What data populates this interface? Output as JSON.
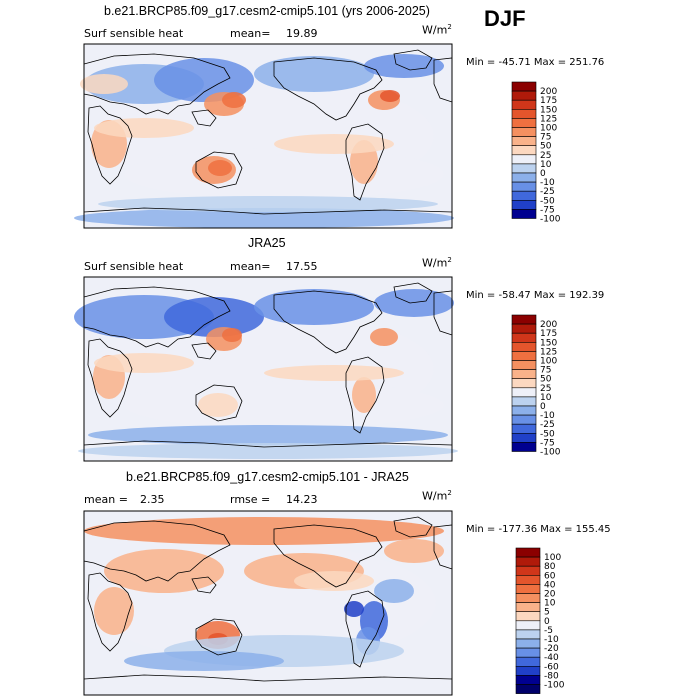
{
  "season": "DJF",
  "chart_data": [
    {
      "type": "heatmap",
      "title": "b.e21.BRCP85.f09_g17.cesm2-cmip5.101 (yrs 2006-2025)",
      "left_label": "Surf sensible heat",
      "mean_label": "mean=",
      "mean_value": "19.89",
      "units": "W/m",
      "units_exp": "2",
      "min_max": "Min = -45.71 Max = 251.76",
      "min": -45.71,
      "max": 251.76,
      "colorbar_levels": [
        "200",
        "175",
        "150",
        "125",
        "100",
        "75",
        "50",
        "25",
        "10",
        "0",
        "-10",
        "-25",
        "-50",
        "-75",
        "-100"
      ],
      "colorbar_colors": [
        "#8b0000",
        "#b01a0a",
        "#d0361a",
        "#e4552c",
        "#ef7040",
        "#f59060",
        "#f9b28a",
        "#fcd8c0",
        "#eef0f8",
        "#bcd2ef",
        "#8cb0ea",
        "#6890e6",
        "#4068dc",
        "#2040c8",
        "#000090"
      ]
    },
    {
      "type": "heatmap",
      "title": "JRA25",
      "left_label": "Surf sensible heat",
      "mean_label": "mean=",
      "mean_value": "17.55",
      "units": "W/m",
      "units_exp": "2",
      "min_max": "Min = -58.47 Max = 192.39",
      "min": -58.47,
      "max": 192.39,
      "colorbar_levels": [
        "200",
        "175",
        "150",
        "125",
        "100",
        "75",
        "50",
        "25",
        "10",
        "0",
        "-10",
        "-25",
        "-50",
        "-75",
        "-100"
      ],
      "colorbar_colors": [
        "#8b0000",
        "#b01a0a",
        "#d0361a",
        "#e4552c",
        "#ef7040",
        "#f59060",
        "#f9b28a",
        "#fcd8c0",
        "#eef0f8",
        "#bcd2ef",
        "#8cb0ea",
        "#6890e6",
        "#4068dc",
        "#2040c8",
        "#000090"
      ]
    },
    {
      "type": "heatmap",
      "title": "b.e21.BRCP85.f09_g17.cesm2-cmip5.101 - JRA25",
      "left_label": "mean =",
      "mean_label": "",
      "mean_value": "2.35",
      "rmse_label": "rmse =",
      "rmse_value": "14.23",
      "units": "W/m",
      "units_exp": "2",
      "min_max": "Min = -177.36 Max = 155.45",
      "min": -177.36,
      "max": 155.45,
      "colorbar_levels": [
        "100",
        "80",
        "60",
        "40",
        "20",
        "10",
        "5",
        "0",
        "-5",
        "-10",
        "-20",
        "-40",
        "-60",
        "-80",
        "-100"
      ],
      "colorbar_colors": [
        "#8b0000",
        "#b01a0a",
        "#d0361a",
        "#e4552c",
        "#ef7040",
        "#f59060",
        "#f9b28a",
        "#fcd8c0",
        "#eef0f8",
        "#bcd2ef",
        "#8cb0ea",
        "#6890e6",
        "#4068dc",
        "#2040c8",
        "#000090",
        "#00006a"
      ]
    }
  ]
}
